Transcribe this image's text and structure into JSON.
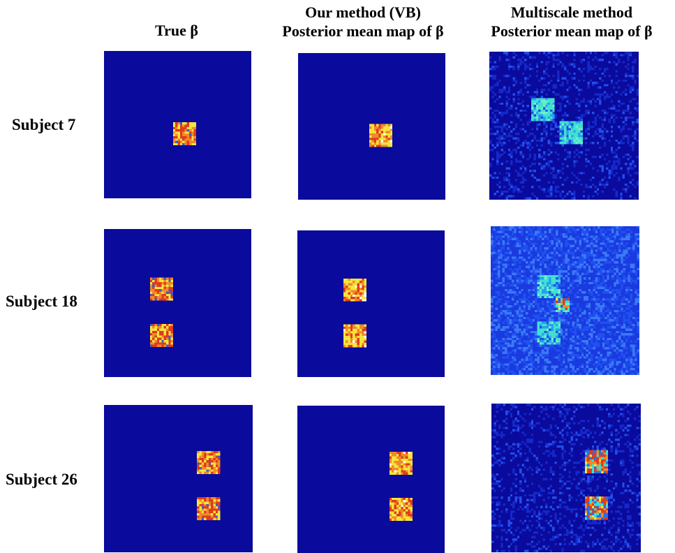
{
  "headers": {
    "col1": "True β",
    "col2_line1": "Our method (VB)",
    "col2_line2": "Posterior mean map of β",
    "col3_line1": "Multiscale method",
    "col3_line2": "Posterior mean map of β"
  },
  "rows": [
    {
      "label": "Subject 7"
    },
    {
      "label": "Subject 18"
    },
    {
      "label": "Subject 26"
    }
  ],
  "colors": {
    "background_low": "#0a0a9c",
    "high_red": "#e03a1e",
    "high_orange": "#f08a28",
    "high_yellow": "#f5e43c",
    "mid_cyan": "#40e0d0"
  },
  "chart_data": [
    {
      "type": "heatmap",
      "subject": "Subject 7",
      "method": "True β",
      "grid": [
        64,
        64
      ],
      "active_blocks": [
        {
          "col_start": 30,
          "row_start": 31,
          "size": 10
        }
      ]
    },
    {
      "type": "heatmap",
      "subject": "Subject 7",
      "method": "Our method (VB)",
      "grid": [
        64,
        64
      ],
      "active_blocks": [
        {
          "col_start": 31,
          "row_start": 31,
          "size": 10
        }
      ]
    },
    {
      "type": "heatmap",
      "subject": "Subject 7",
      "method": "Multiscale method",
      "grid": [
        64,
        64
      ],
      "active_blocks": [
        {
          "col_start": 18,
          "row_start": 20,
          "size": 10
        },
        {
          "col_start": 30,
          "row_start": 30,
          "size": 10
        }
      ]
    },
    {
      "type": "heatmap",
      "subject": "Subject 18",
      "method": "True β",
      "grid": [
        64,
        64
      ],
      "active_blocks": [
        {
          "col_start": 20,
          "row_start": 21,
          "size": 10
        },
        {
          "col_start": 20,
          "row_start": 41,
          "size": 10
        }
      ]
    },
    {
      "type": "heatmap",
      "subject": "Subject 18",
      "method": "Our method (VB)",
      "grid": [
        64,
        64
      ],
      "active_blocks": [
        {
          "col_start": 20,
          "row_start": 21,
          "size": 10
        },
        {
          "col_start": 20,
          "row_start": 41,
          "size": 10
        }
      ]
    },
    {
      "type": "heatmap",
      "subject": "Subject 18",
      "method": "Multiscale method",
      "grid": [
        64,
        64
      ],
      "active_blocks": [
        {
          "col_start": 20,
          "row_start": 21,
          "size": 10
        },
        {
          "col_start": 28,
          "row_start": 31,
          "size": 6
        },
        {
          "col_start": 20,
          "row_start": 41,
          "size": 10
        }
      ]
    },
    {
      "type": "heatmap",
      "subject": "Subject 26",
      "method": "True β",
      "grid": [
        64,
        64
      ],
      "active_blocks": [
        {
          "col_start": 40,
          "row_start": 20,
          "size": 10
        },
        {
          "col_start": 40,
          "row_start": 40,
          "size": 10
        }
      ]
    },
    {
      "type": "heatmap",
      "subject": "Subject 26",
      "method": "Our method (VB)",
      "grid": [
        64,
        64
      ],
      "active_blocks": [
        {
          "col_start": 40,
          "row_start": 20,
          "size": 10
        },
        {
          "col_start": 40,
          "row_start": 40,
          "size": 10
        }
      ]
    },
    {
      "type": "heatmap",
      "subject": "Subject 26",
      "method": "Multiscale method",
      "grid": [
        64,
        64
      ],
      "active_blocks": [
        {
          "col_start": 40,
          "row_start": 20,
          "size": 10
        },
        {
          "col_start": 40,
          "row_start": 40,
          "size": 10
        }
      ]
    }
  ]
}
